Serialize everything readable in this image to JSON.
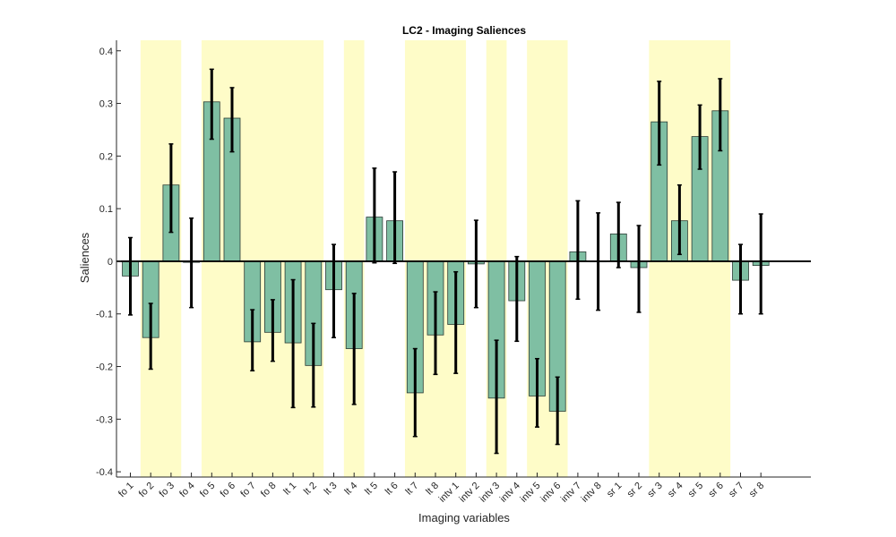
{
  "chart_data": {
    "type": "bar",
    "title": "LC2 - Imaging Saliences",
    "xlabel": "Imaging variables",
    "ylabel": "Saliences",
    "ylim": [
      -0.41,
      0.42
    ],
    "yticks": [
      -0.4,
      -0.3,
      -0.2,
      -0.1,
      0,
      0.1,
      0.2,
      0.3,
      0.4
    ],
    "grid": false,
    "legend": "none",
    "categories": [
      "fo 1",
      "fo 2",
      "fo 3",
      "fo 4",
      "fo 5",
      "fo 6",
      "fo 7",
      "fo 8",
      "lt 1",
      "lt 2",
      "lt 3",
      "lt 4",
      "lt 5",
      "lt 6",
      "lt 7",
      "lt 8",
      "intv 1",
      "intv 2",
      "intv 3",
      "intv 4",
      "intv 5",
      "intv 6",
      "intv 7",
      "intv 8",
      "sr 1",
      "sr 2",
      "sr 3",
      "sr 4",
      "sr 5",
      "sr 6",
      "sr 7",
      "sr 8"
    ],
    "values": [
      -0.028,
      -0.145,
      0.145,
      -0.002,
      0.303,
      0.272,
      -0.153,
      -0.135,
      -0.155,
      -0.198,
      -0.054,
      -0.166,
      0.084,
      0.077,
      -0.25,
      -0.14,
      -0.12,
      -0.005,
      -0.26,
      -0.075,
      -0.256,
      -0.285,
      0.018,
      0.0,
      0.052,
      -0.012,
      0.265,
      0.077,
      0.237,
      0.286,
      -0.036,
      -0.008
    ],
    "error_low": [
      -0.102,
      -0.205,
      0.055,
      -0.088,
      0.232,
      0.208,
      -0.208,
      -0.19,
      -0.278,
      -0.277,
      -0.145,
      -0.272,
      -0.003,
      -0.004,
      -0.333,
      -0.215,
      -0.213,
      -0.088,
      -0.365,
      -0.152,
      -0.315,
      -0.348,
      -0.072,
      -0.093,
      -0.012,
      -0.097,
      0.183,
      0.013,
      0.175,
      0.21,
      -0.1,
      -0.1
    ],
    "error_high": [
      0.045,
      -0.08,
      0.223,
      0.082,
      0.365,
      0.33,
      -0.092,
      -0.073,
      -0.035,
      -0.118,
      0.032,
      -0.061,
      0.177,
      0.17,
      -0.166,
      -0.058,
      -0.02,
      0.078,
      -0.15,
      0.009,
      -0.185,
      -0.22,
      0.115,
      0.092,
      0.112,
      0.068,
      0.342,
      0.145,
      0.297,
      0.347,
      0.032,
      0.09
    ],
    "highlighted_categories": [
      "fo 2",
      "fo 3",
      "fo 5",
      "fo 6",
      "fo 7",
      "fo 8",
      "lt 1",
      "lt 2",
      "lt 4",
      "lt 7",
      "lt 8",
      "intv 1",
      "intv 3",
      "intv 5",
      "intv 6",
      "sr 3",
      "sr 4",
      "sr 5",
      "sr 6"
    ],
    "colors": {
      "bar": "#7fbfa3",
      "bar_edge": "#2b3b35",
      "highlight": "#fefcc8",
      "errorbar": "#000000",
      "zero_line": "#000000",
      "axis": "#262626"
    }
  }
}
